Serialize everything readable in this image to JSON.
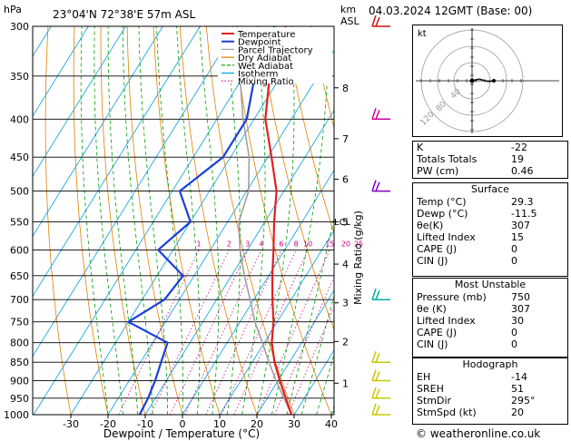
{
  "header": {
    "hpa_label": "hPa",
    "location": "23°04'N  72°38'E  57m  ASL",
    "km_label": "km",
    "asl_label": "ASL",
    "date": "04.03.2024  12GMT  (Base: 00)"
  },
  "legend": [
    "Temperature",
    "Dewpoint",
    "Parcel Trajectory",
    "Dry Adiabat",
    "Wet Adiabat",
    "Isotherm",
    "Mixing Ratio"
  ],
  "colors": {
    "temperature": "#e02020",
    "dewpoint": "#1a3fd8",
    "parcel": "#a0a0a0",
    "dry_adiabat": "#e08000",
    "wet_adiabat": "#00a000",
    "isotherm": "#00a0e0",
    "mixing_ratio": "#d0008a",
    "wind_flag_red": "#d01010",
    "wind_flag_mag": "#d000a0",
    "wind_flag_purple": "#8000c0",
    "wind_flag_teal": "#00b0a0",
    "wind_flag_yellow": "#c8c800"
  },
  "chart_data": {
    "type": "line",
    "title": "Skew-T log-P diagram",
    "xlabel": "Dewpoint / Temperature (°C)",
    "ylabel_left": "hPa",
    "ylabel_right": "Mixing Ratio (g/kg)",
    "xlim": [
      -40,
      40
    ],
    "ylim": [
      1000,
      300
    ],
    "pressure_ticks": [
      300,
      350,
      400,
      450,
      500,
      550,
      600,
      650,
      700,
      750,
      800,
      850,
      900,
      950,
      1000
    ],
    "x_ticks": [
      -30,
      -20,
      -10,
      0,
      10,
      20,
      30,
      40
    ],
    "km_ticks": [
      {
        "km": "1",
        "p": 907
      },
      {
        "km": "2",
        "p": 797
      },
      {
        "km": "3",
        "p": 707
      },
      {
        "km": "4",
        "p": 627
      },
      {
        "km": "5",
        "p": 550
      },
      {
        "km": "6",
        "p": 482
      },
      {
        "km": "7",
        "p": 425
      },
      {
        "km": "8",
        "p": 363
      }
    ],
    "lcl_label": "LCL",
    "lcl_p": 550,
    "mixing_ratio_labels": [
      "1",
      "2",
      "3",
      "4",
      "6",
      "8",
      "10",
      "15",
      "20",
      "25"
    ],
    "series": [
      {
        "name": "Temperature",
        "p": [
          1000,
          950,
          900,
          850,
          800,
          750,
          700,
          650,
          600,
          550,
          500,
          450,
          400,
          350,
          300
        ],
        "t": [
          29.3,
          25,
          20.5,
          16,
          12,
          9,
          5,
          1,
          -3,
          -7.5,
          -12,
          -19,
          -27,
          -33,
          -37
        ]
      },
      {
        "name": "Dewpoint",
        "p": [
          1000,
          950,
          900,
          850,
          800,
          750,
          700,
          650,
          600,
          550,
          500,
          450,
          400,
          350,
          300
        ],
        "t": [
          -11.5,
          -12,
          -13,
          -14.5,
          -16,
          -30,
          -24,
          -23,
          -34,
          -30,
          -38,
          -32,
          -32,
          -37,
          -40
        ]
      },
      {
        "name": "Parcel Trajectory",
        "p": [
          1000,
          950,
          900,
          850,
          800,
          750,
          700,
          650,
          600,
          550,
          500,
          450,
          400,
          350,
          300
        ],
        "t": [
          29.3,
          24.5,
          19.5,
          14.5,
          9.5,
          4,
          -1,
          -6.5,
          -12,
          -17,
          -19.5,
          -25,
          -33,
          -41,
          -50
        ]
      }
    ],
    "wind_barbs": [
      {
        "p": 300,
        "color": "red"
      },
      {
        "p": 400,
        "color": "magenta"
      },
      {
        "p": 500,
        "color": "purple"
      },
      {
        "p": 700,
        "color": "teal"
      },
      {
        "p": 850,
        "color": "yellow"
      },
      {
        "p": 900,
        "color": "yellow"
      },
      {
        "p": 950,
        "color": "yellow"
      },
      {
        "p": 1000,
        "color": "yellow"
      }
    ]
  },
  "hodograph": {
    "label": "kt",
    "rings": [
      "40",
      "80",
      "120"
    ]
  },
  "indices": {
    "k": {
      "label": "K",
      "value": "-22"
    },
    "tt": {
      "label": "Totals Totals",
      "value": "19"
    },
    "pw": {
      "label": "PW (cm)",
      "value": "0.46"
    }
  },
  "surface": {
    "title": "Surface",
    "temp": {
      "label": "Temp (°C)",
      "value": "29.3"
    },
    "dewp": {
      "label": "Dewp (°C)",
      "value": "-11.5"
    },
    "theta": {
      "label": "θe(K)",
      "value": "307"
    },
    "li": {
      "label": "Lifted Index",
      "value": "15"
    },
    "cape": {
      "label": "CAPE (J)",
      "value": "0"
    },
    "cin": {
      "label": "CIN (J)",
      "value": "0"
    }
  },
  "most_unstable": {
    "title": "Most Unstable",
    "pressure": {
      "label": "Pressure (mb)",
      "value": "750"
    },
    "theta": {
      "label": "θe (K)",
      "value": "307"
    },
    "li": {
      "label": "Lifted Index",
      "value": "30"
    },
    "cape": {
      "label": "CAPE (J)",
      "value": "0"
    },
    "cin": {
      "label": "CIN (J)",
      "value": "0"
    }
  },
  "hodo": {
    "title": "Hodograph",
    "eh": {
      "label": "EH",
      "value": "-14"
    },
    "sreh": {
      "label": "SREH",
      "value": "51"
    },
    "stmdir": {
      "label": "StmDir",
      "value": "295°"
    },
    "stmspd": {
      "label": "StmSpd (kt)",
      "value": "20"
    }
  },
  "credit": "© weatheronline.co.uk"
}
